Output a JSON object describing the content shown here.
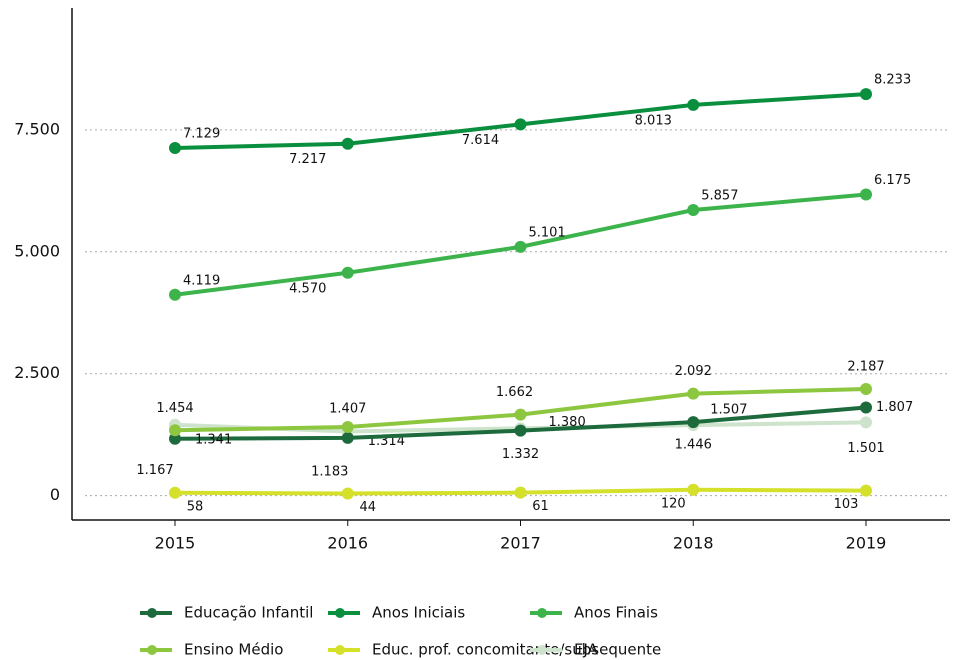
{
  "chart_data": {
    "type": "line",
    "categories": [
      "2015",
      "2016",
      "2017",
      "2018",
      "2019"
    ],
    "ylim": [
      -500,
      10000
    ],
    "yticks": [
      0,
      {
        "value": 2500,
        "label": "2.500"
      },
      {
        "value": 5000,
        "label": "5.000"
      },
      {
        "value": 7500,
        "label": "7.500"
      }
    ],
    "grid": true,
    "series": [
      {
        "name": "Educação Infantil",
        "color": "#1d6b3c",
        "values": [
          1167,
          1183,
          1332,
          1507,
          1807
        ],
        "value_labels": [
          "1.167",
          "1.183",
          "1.332",
          "1.507",
          "1.807"
        ]
      },
      {
        "name": "Anos Iniciais",
        "color": "#0a8f3f",
        "values": [
          7129,
          7217,
          7614,
          8013,
          8233
        ],
        "value_labels": [
          "7.129",
          "7.217",
          "7.614",
          "8.013",
          "8.233"
        ]
      },
      {
        "name": "Anos Finais",
        "color": "#3db44b",
        "values": [
          4119,
          4570,
          5101,
          5857,
          6175
        ],
        "value_labels": [
          "4.119",
          "4.570",
          "5.101",
          "5.857",
          "6.175"
        ]
      },
      {
        "name": "Ensino Médio",
        "color": "#8dc63f",
        "values": [
          1341,
          1407,
          1662,
          2092,
          2187
        ],
        "value_labels": [
          "1.341",
          "1.407",
          "1.662",
          "2.092",
          "2.187"
        ]
      },
      {
        "name": "Educ. prof. concomitante/subsequente",
        "color": "#d4e02a",
        "values": [
          58,
          44,
          61,
          120,
          103
        ],
        "value_labels": [
          "58",
          "44",
          "61",
          "120",
          "103"
        ]
      },
      {
        "name": "EJA",
        "color": "#cde3cc",
        "values": [
          1454,
          1314,
          1380,
          1446,
          1501
        ],
        "value_labels": [
          "1.454",
          "1.314",
          "1.380",
          "1.446",
          "1.501"
        ]
      }
    ]
  }
}
